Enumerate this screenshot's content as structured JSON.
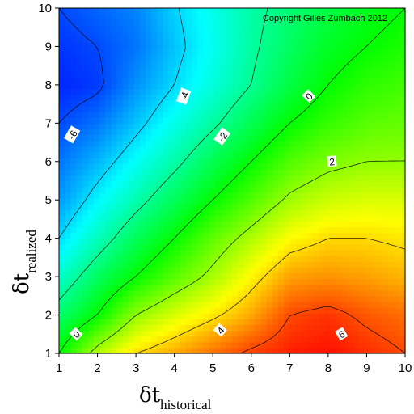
{
  "chart_data": {
    "type": "heatmap",
    "subtype": "filled-contour",
    "title": "",
    "copyright": "Copyright Gilles Zumbach 2012",
    "xlabel": {
      "symbol": "δt",
      "subscript": "historical"
    },
    "ylabel": {
      "symbol": "δt",
      "subscript": "realized"
    },
    "x": [
      1,
      2,
      3,
      4,
      5,
      6,
      7,
      8,
      9,
      10
    ],
    "y": [
      1,
      2,
      3,
      4,
      5,
      6,
      7,
      8,
      9,
      10
    ],
    "xlim": [
      1,
      10
    ],
    "ylim": [
      1,
      10
    ],
    "xticks": [
      "1",
      "2",
      "3",
      "4",
      "5",
      "6",
      "7",
      "8",
      "9",
      "10"
    ],
    "yticks": [
      "1",
      "2",
      "3",
      "4",
      "5",
      "6",
      "7",
      "8",
      "9",
      "10"
    ],
    "z": [
      [
        0.0,
        2.5,
        4.0,
        4.7,
        5.5,
        6.2,
        6.6,
        6.8,
        6.4,
        6.0
      ],
      [
        -1.5,
        0.0,
        2.0,
        3.0,
        3.8,
        4.7,
        6.0,
        6.3,
        5.8,
        5.5
      ],
      [
        -2.8,
        -1.3,
        0.0,
        1.2,
        2.3,
        3.6,
        4.8,
        5.0,
        4.8,
        4.5
      ],
      [
        -4.0,
        -2.6,
        -1.2,
        0.0,
        1.3,
        2.4,
        3.5,
        4.0,
        4.0,
        3.8
      ],
      [
        -4.9,
        -3.6,
        -2.4,
        -1.2,
        0.0,
        1.1,
        2.2,
        2.8,
        3.0,
        3.0
      ],
      [
        -5.4,
        -4.5,
        -3.4,
        -2.3,
        -1.1,
        0.0,
        1.1,
        1.7,
        2.0,
        2.0
      ],
      [
        -6.0,
        -5.4,
        -4.3,
        -3.2,
        -2.2,
        -1.1,
        0.0,
        0.7,
        1.2,
        1.4
      ],
      [
        -6.5,
        -6.2,
        -5.0,
        -4.0,
        -3.0,
        -2.0,
        -0.9,
        0.0,
        0.6,
        0.9
      ],
      [
        -6.3,
        -6.0,
        -5.4,
        -4.3,
        -3.3,
        -2.2,
        -1.3,
        -0.5,
        0.0,
        0.4
      ],
      [
        -6.0,
        -5.6,
        -5.2,
        -4.1,
        -3.2,
        -2.3,
        -1.6,
        -0.9,
        -0.4,
        0.0
      ]
    ],
    "zlim": [
      -7,
      7
    ],
    "colorscale": [
      "#0000ff",
      "#00ffff",
      "#00ff00",
      "#ffff00",
      "#ff0000"
    ],
    "contour_levels": [
      {
        "level": -6,
        "label": "-6"
      },
      {
        "level": -4,
        "label": "-4"
      },
      {
        "level": -2,
        "label": "-2"
      },
      {
        "level": 0,
        "label": "0"
      },
      {
        "level": 2,
        "label": "2"
      },
      {
        "level": 4,
        "label": "4"
      },
      {
        "level": 6,
        "label": "6"
      }
    ],
    "contour_labels": [
      {
        "text": "-6",
        "x": 1.35,
        "y": 6.7,
        "angle": -60
      },
      {
        "text": "-4",
        "x": 4.25,
        "y": 7.7,
        "angle": -70
      },
      {
        "text": "-2",
        "x": 5.25,
        "y": 6.65,
        "angle": -55
      },
      {
        "text": "0",
        "x": 7.5,
        "y": 7.7,
        "angle": -45
      },
      {
        "text": "2",
        "x": 8.1,
        "y": 6.0,
        "angle": -5
      },
      {
        "text": "4",
        "x": 5.2,
        "y": 1.6,
        "angle": -50
      },
      {
        "text": "6",
        "x": 8.35,
        "y": 1.5,
        "angle": -30
      },
      {
        "text": "0",
        "x": 1.45,
        "y": 1.5,
        "angle": -45
      }
    ],
    "grid": false,
    "legend": "none"
  }
}
